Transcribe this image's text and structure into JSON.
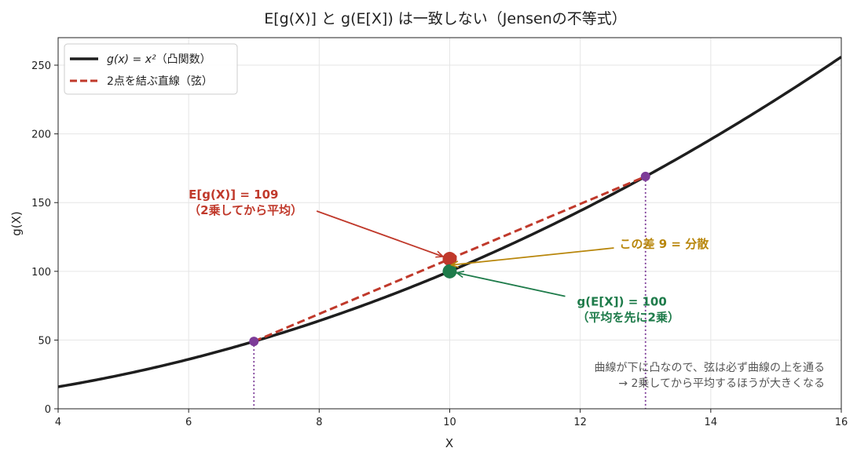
{
  "chart_data": {
    "type": "line",
    "title": "E[g(X)] と g(E[X]) は一致しない（Jensenの不等式）",
    "xlabel": "X",
    "ylabel": "g(X)",
    "xlim": [
      4,
      16
    ],
    "ylim": [
      0,
      270
    ],
    "xticks": [
      4,
      6,
      8,
      10,
      12,
      14,
      16
    ],
    "yticks": [
      0,
      50,
      100,
      150,
      200,
      250
    ],
    "grid": true,
    "legend_position": "top-left",
    "series": [
      {
        "name_main": "g(x) = x²",
        "name_suffix": "（凸関数）",
        "kind": "curve",
        "function": "x^2",
        "color": "#1e1e1e"
      },
      {
        "name": "2点を結ぶ直線（弦）",
        "kind": "chord",
        "x": [
          7,
          13
        ],
        "y": [
          49,
          169
        ],
        "color": "#c0392b",
        "dashed": true
      }
    ],
    "points": [
      {
        "id": "left-endpoint",
        "x": 7,
        "y": 49,
        "color": "#7d3c98",
        "vline": true
      },
      {
        "id": "right-endpoint",
        "x": 13,
        "y": 169,
        "color": "#7d3c98",
        "vline": true
      },
      {
        "id": "expected-g",
        "x": 10,
        "y": 109,
        "color": "#c0392b",
        "big": true
      },
      {
        "id": "g-of-expected",
        "x": 10,
        "y": 100,
        "color": "#1e7b4a",
        "big": true
      }
    ],
    "annotations": [
      {
        "id": "expected-g",
        "lines": [
          "E[g(X)] = 109",
          "（2乗してから平均）"
        ],
        "color": "#c0392b",
        "text_at": [
          6.0,
          153
        ],
        "arrow_to": [
          10,
          109
        ]
      },
      {
        "id": "g-of-expected",
        "lines": [
          "g(E[X]) = 100",
          "（平均を先に2乗）"
        ],
        "color": "#1e7b4a",
        "text_at": [
          11.95,
          75
        ],
        "arrow_to": [
          10,
          100
        ]
      },
      {
        "id": "difference",
        "lines": [
          "この差 9 = 分散"
        ],
        "color": "#b8860b",
        "text_at": [
          12.6,
          117
        ],
        "arrow_to": [
          10,
          104.5
        ]
      }
    ],
    "note": [
      "曲線が下に凸なので、弦は必ず曲線の上を通る",
      "→ 2乗してから平均するほうが大きくなる"
    ]
  }
}
